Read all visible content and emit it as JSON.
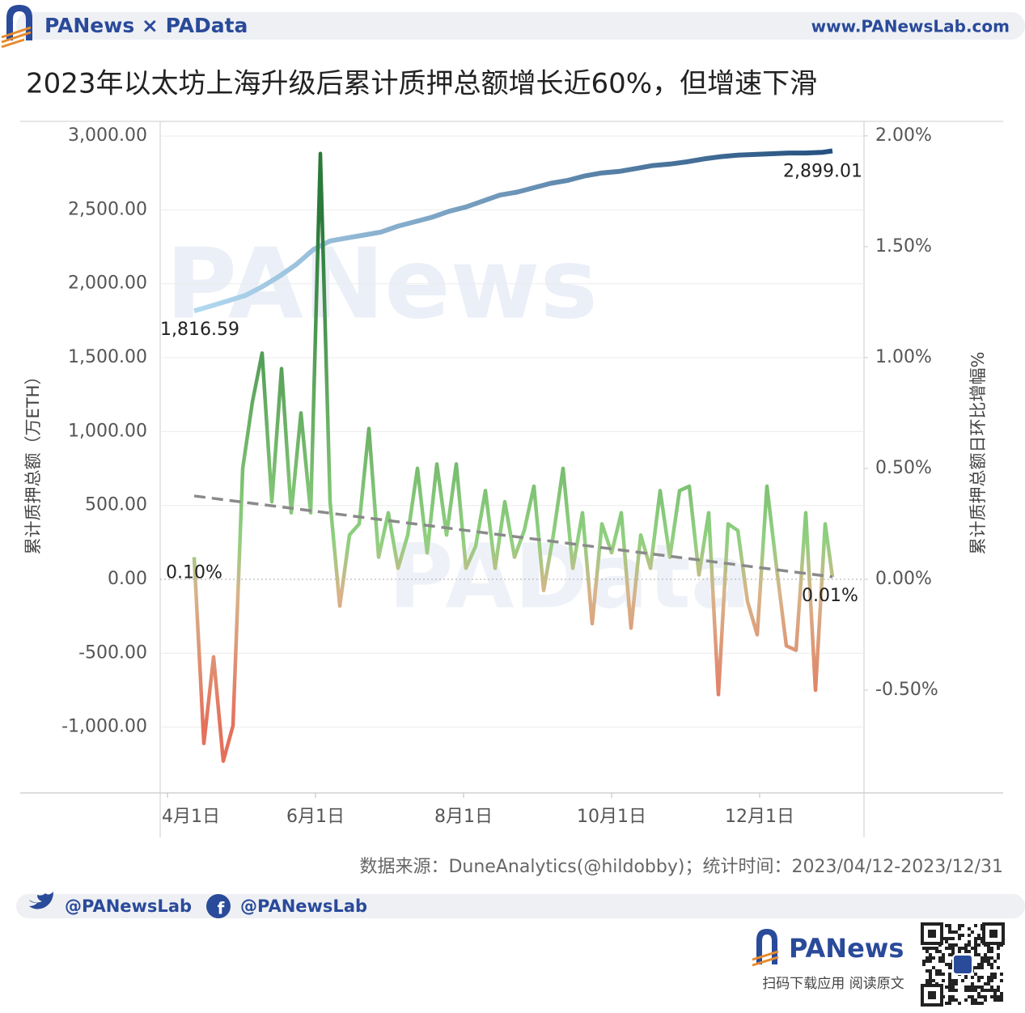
{
  "header": {
    "brand": "PANews × PAData",
    "site": "www.PANewsLab.com"
  },
  "chart_data": {
    "type": "line",
    "title": "2023年以太坊上海升级后累计质押总额增长近60%，但增速下滑",
    "y_label": "累计质押总额（万ETH）",
    "y2_label": "累计质押总额日环比增幅%",
    "source": "数据来源：DuneAnalytics(@hildobby)；统计时间：2023/04/12-2023/12/31",
    "watermarks": [
      "PANews",
      "PAData"
    ],
    "xlim": [
      "03-29",
      "01-13"
    ],
    "xticks": [
      {
        "value": "04-01",
        "label": "4月1日"
      },
      {
        "value": "06-01",
        "label": "6月1日"
      },
      {
        "value": "08-01",
        "label": "8月1日"
      },
      {
        "value": "10-01",
        "label": "10月1日"
      },
      {
        "value": "12-01",
        "label": "12月1日"
      }
    ],
    "ylim": [
      -1445,
      3088
    ],
    "yticks": [
      {
        "value": -1000,
        "label": "-1,000.00"
      },
      {
        "value": -500,
        "label": "-500.00"
      },
      {
        "value": 0,
        "label": "0.00"
      },
      {
        "value": 500,
        "label": "500.00"
      },
      {
        "value": 1000,
        "label": "1,000.00"
      },
      {
        "value": 1500,
        "label": "1,500.00"
      },
      {
        "value": 2000,
        "label": "2,000.00"
      },
      {
        "value": 2500,
        "label": "2,500.00"
      },
      {
        "value": 3000,
        "label": "3,000.00"
      }
    ],
    "y2lim": [
      -0.9635,
      2.058
    ],
    "y2ticks": [
      {
        "value": -0.5,
        "label": "-0.50%"
      },
      {
        "value": 0,
        "label": "0.00%"
      },
      {
        "value": 0.5,
        "label": "0.50%"
      },
      {
        "value": 1,
        "label": "1.00%"
      },
      {
        "value": 1.5,
        "label": "1.50%"
      },
      {
        "value": 2,
        "label": "2.00%"
      }
    ],
    "grid": true,
    "series": [
      {
        "axis": "y",
        "colors": [
          "#b3d9f0",
          "#24507e"
        ],
        "x": [
          "04-12",
          "04-19",
          "04-26",
          "05-03",
          "05-10",
          "05-17",
          "05-24",
          "05-31",
          "06-07",
          "06-14",
          "06-21",
          "06-28",
          "07-05",
          "07-12",
          "07-19",
          "07-26",
          "08-02",
          "08-09",
          "08-16",
          "08-23",
          "08-30",
          "09-06",
          "09-13",
          "09-20",
          "09-27",
          "10-04",
          "10-11",
          "10-18",
          "10-25",
          "11-01",
          "11-08",
          "11-15",
          "11-22",
          "11-29",
          "12-06",
          "12-13",
          "12-20",
          "12-27",
          "12-31"
        ],
        "values": [
          1816.59,
          1850,
          1885,
          1920,
          1980,
          2050,
          2130,
          2230,
          2290,
          2310,
          2330,
          2350,
          2390,
          2420,
          2450,
          2490,
          2520,
          2560,
          2600,
          2620,
          2650,
          2680,
          2700,
          2730,
          2750,
          2760,
          2780,
          2800,
          2810,
          2825,
          2845,
          2860,
          2870,
          2875,
          2880,
          2885,
          2885,
          2890,
          2899.01
        ],
        "value_labels": [
          "1,816.59",
          null,
          null,
          null,
          null,
          null,
          null,
          null,
          null,
          null,
          null,
          null,
          null,
          null,
          null,
          null,
          null,
          null,
          null,
          null,
          null,
          null,
          null,
          null,
          null,
          null,
          null,
          null,
          null,
          null,
          null,
          null,
          null,
          null,
          null,
          null,
          null,
          null,
          "2,899.01"
        ]
      },
      {
        "axis": "y2",
        "color_scale": [
          "#2b7a3a",
          "#8fd07f",
          "#d8b48a",
          "#e5705b"
        ],
        "x": [
          "04-12",
          "04-16",
          "04-20",
          "04-24",
          "04-28",
          "05-02",
          "05-06",
          "05-10",
          "05-14",
          "05-18",
          "05-22",
          "05-26",
          "05-30",
          "06-03",
          "06-07",
          "06-11",
          "06-15",
          "06-19",
          "06-23",
          "06-27",
          "07-01",
          "07-05",
          "07-09",
          "07-13",
          "07-17",
          "07-21",
          "07-25",
          "07-29",
          "08-02",
          "08-06",
          "08-10",
          "08-14",
          "08-18",
          "08-22",
          "08-26",
          "08-30",
          "09-03",
          "09-07",
          "09-11",
          "09-15",
          "09-19",
          "09-23",
          "09-27",
          "10-01",
          "10-05",
          "10-09",
          "10-13",
          "10-17",
          "10-21",
          "10-25",
          "10-29",
          "11-02",
          "11-06",
          "11-10",
          "11-14",
          "11-18",
          "11-22",
          "11-26",
          "11-30",
          "12-04",
          "12-08",
          "12-12",
          "12-16",
          "12-20",
          "12-24",
          "12-28",
          "12-31"
        ],
        "values": [
          0.1,
          -0.74,
          -0.35,
          -0.82,
          -0.66,
          0.5,
          0.8,
          1.02,
          0.35,
          0.95,
          0.3,
          0.75,
          0.3,
          1.92,
          0.35,
          -0.12,
          0.2,
          0.25,
          0.68,
          0.1,
          0.3,
          0.05,
          0.2,
          0.5,
          0.12,
          0.52,
          0.2,
          0.52,
          0.05,
          0.15,
          0.4,
          0.05,
          0.35,
          0.1,
          0.22,
          0.42,
          -0.05,
          0.2,
          0.5,
          0.05,
          0.3,
          -0.2,
          0.25,
          0.12,
          0.3,
          -0.22,
          0.2,
          0.05,
          0.4,
          0.1,
          0.4,
          0.42,
          0.02,
          0.3,
          -0.52,
          0.25,
          0.22,
          -0.1,
          -0.25,
          0.42,
          0.05,
          -0.3,
          -0.32,
          0.3,
          -0.5,
          0.25,
          0.01
        ],
        "value_labels": [
          "0.10%",
          null,
          null,
          null,
          null,
          null,
          null,
          null,
          null,
          null,
          null,
          null,
          null,
          null,
          null,
          null,
          null,
          null,
          null,
          null,
          null,
          null,
          null,
          null,
          null,
          null,
          null,
          null,
          null,
          null,
          null,
          null,
          null,
          null,
          null,
          null,
          null,
          null,
          null,
          null,
          null,
          null,
          null,
          null,
          null,
          null,
          null,
          null,
          null,
          null,
          null,
          null,
          null,
          null,
          null,
          null,
          null,
          null,
          null,
          null,
          null,
          null,
          null,
          null,
          null,
          null,
          "0.01%"
        ]
      }
    ],
    "trendline": {
      "axis": "y2",
      "color": "#8a8a8a",
      "x": [
        "04-12",
        "12-31"
      ],
      "values": [
        0.376,
        0.011
      ]
    }
  },
  "footer": {
    "twitter": "@PANewsLab",
    "facebook": "@PANewsLab",
    "brand": "PANews",
    "qr_caption": "扫码下载应用 阅读原文"
  }
}
